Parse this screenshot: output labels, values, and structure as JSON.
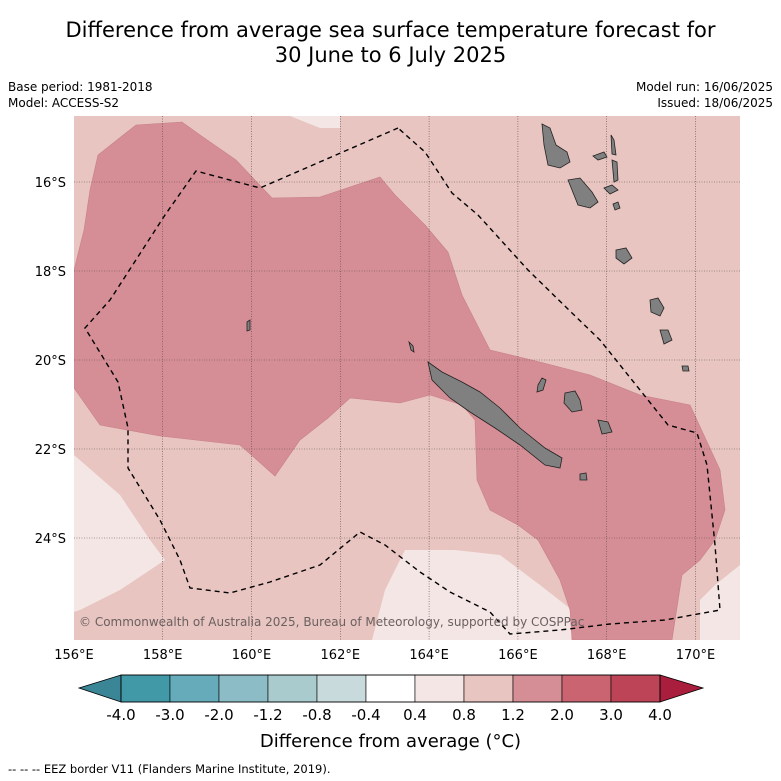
{
  "title": {
    "line1": "Difference from average sea surface temperature forecast for",
    "line2": "30 June to 6 July 2025"
  },
  "meta_left": {
    "base_period": "Base period: 1981-2018",
    "model": "Model: ACCESS-S2"
  },
  "meta_right": {
    "model_run": "Model run: 16/06/2025",
    "issued": "Issued: 18/06/2025"
  },
  "map": {
    "lon_ticks": [
      "156°E",
      "158°E",
      "160°E",
      "162°E",
      "164°E",
      "166°E",
      "168°E",
      "170°E"
    ],
    "lat_ticks": [
      "16°S",
      "18°S",
      "20°S",
      "22°S",
      "24°S"
    ],
    "copyright": "© Commonwealth of Australia 2025, Bureau of Meteorology, supported by COSPPac"
  },
  "colorbar": {
    "title": "Difference from average ($^\\circ$C)",
    "title_display": "Difference from average (°C)",
    "labels": [
      "-4.0",
      "-3.0",
      "-2.0",
      "-1.2",
      "-0.8",
      "-0.4",
      "0.4",
      "0.8",
      "1.2",
      "2.0",
      "3.0",
      "4.0"
    ],
    "colors": [
      "#4199a8",
      "#66abba",
      "#8cbcc6",
      "#a9cbce",
      "#c8dadb",
      "#ffffff",
      "#f4e6e4",
      "#e8c5c0",
      "#d58e95",
      "#cb6471",
      "#bd4356"
    ],
    "extend_low": "#3a8596",
    "extend_high": "#a81e3c"
  },
  "legend_footer": "-- -- -- EEZ border V11 (Flanders Marine Institute, 2019).",
  "colors": {
    "land": "#808080",
    "coast": "#222222",
    "grid": "#5a4a4a"
  }
}
